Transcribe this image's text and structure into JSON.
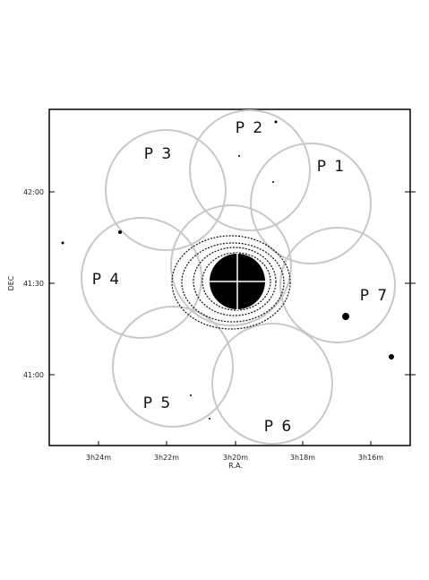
{
  "axes": {
    "x_label": "R.A.",
    "y_label": "DEC",
    "x_ticks": [
      "3h24m",
      "3h22m",
      "3h20m",
      "3h18m",
      "3h16m"
    ],
    "y_ticks": [
      "42:00",
      "41:30",
      "41:00"
    ]
  },
  "pointings": [
    {
      "label": "P 1"
    },
    {
      "label": "P 2"
    },
    {
      "label": "P 3"
    },
    {
      "label": "P 4"
    },
    {
      "label": "P 5"
    },
    {
      "label": "P 6"
    },
    {
      "label": "P 7"
    }
  ]
}
